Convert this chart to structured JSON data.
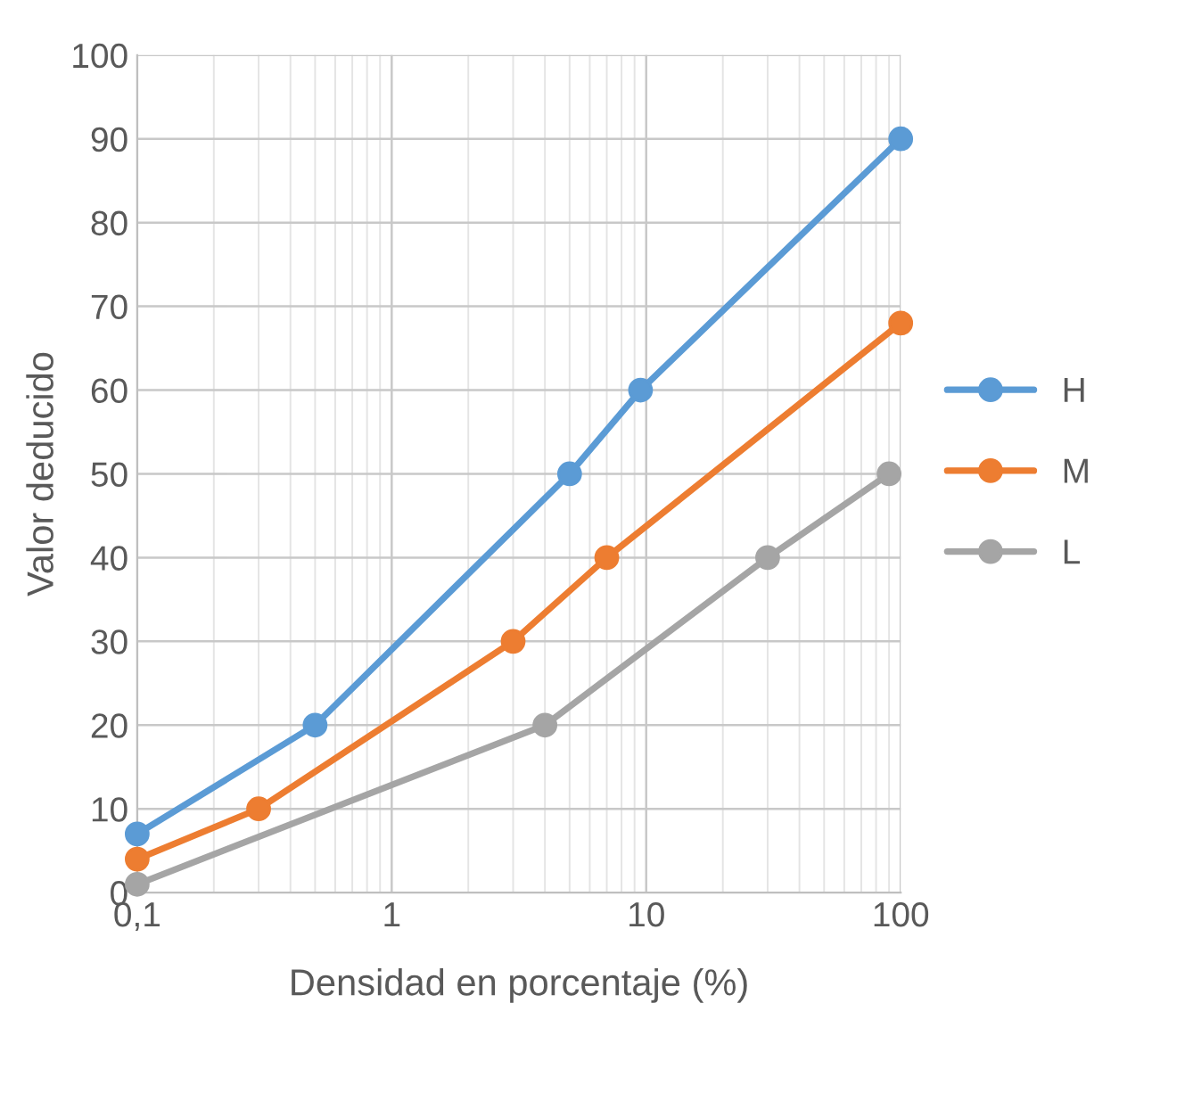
{
  "chart_data": {
    "type": "line",
    "xlabel": "Densidad en porcentaje (%)",
    "ylabel": "Valor deducido",
    "log": "x",
    "xlim": [
      0.1,
      100
    ],
    "ylim": [
      0,
      100
    ],
    "xticks": [
      {
        "value": 0.1,
        "label": "0,1"
      },
      1,
      10,
      100
    ],
    "yticks": [
      0,
      10,
      20,
      30,
      40,
      50,
      60,
      70,
      80,
      90,
      100
    ],
    "grid": true,
    "legend": "right",
    "marker": "circle",
    "line_style": "solid",
    "series": [
      {
        "name": "H",
        "color": "#5b9bd5",
        "x": [
          0.1,
          0.5,
          5,
          9.5,
          100
        ],
        "values": [
          7,
          20,
          50,
          60,
          90
        ]
      },
      {
        "name": "M",
        "color": "#ed7d31",
        "x": [
          0.1,
          0.3,
          3,
          7,
          100
        ],
        "values": [
          4,
          10,
          30,
          40,
          68
        ]
      },
      {
        "name": "L",
        "color": "#a5a5a5",
        "x": [
          0.1,
          4,
          30,
          90
        ],
        "values": [
          1,
          20,
          40,
          50
        ]
      }
    ]
  }
}
